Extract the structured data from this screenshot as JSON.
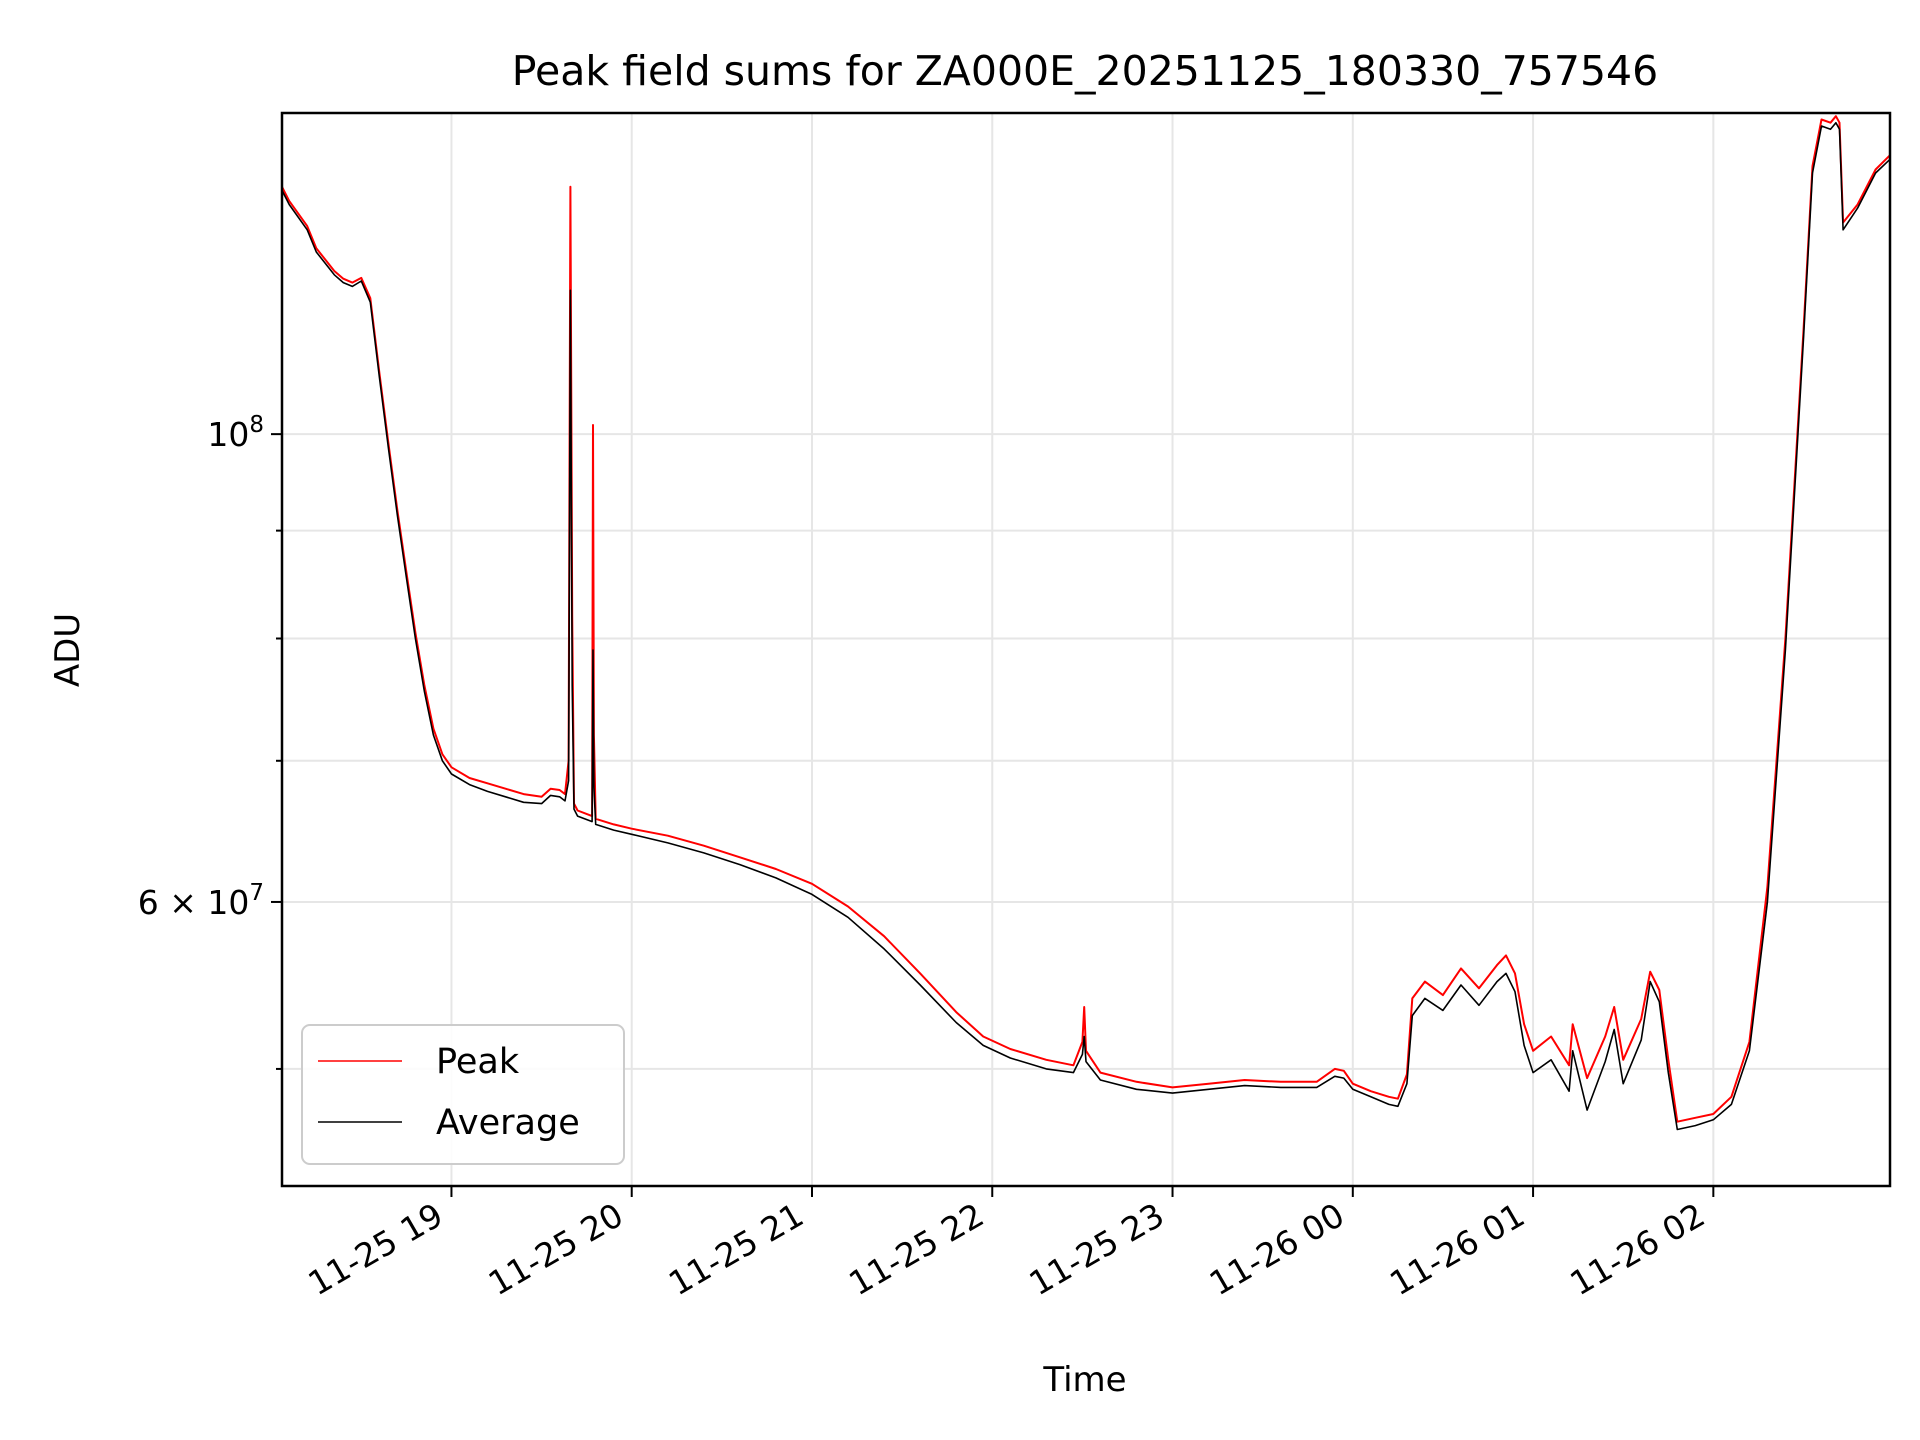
{
  "chart_data": {
    "type": "line",
    "title": "Peak field sums for ZA000E_20251125_180330_757546",
    "xlabel": "Time",
    "ylabel": "ADU",
    "yscale": "log",
    "xlim": [
      18.06,
      26.98
    ],
    "ylim": [
      44000000,
      142000000
    ],
    "grid": true,
    "legend_position": "lower-left",
    "x_ticks": [
      {
        "value": 19,
        "label": "11-25 19"
      },
      {
        "value": 20,
        "label": "11-25 20"
      },
      {
        "value": 21,
        "label": "11-25 21"
      },
      {
        "value": 22,
        "label": "11-25 22"
      },
      {
        "value": 23,
        "label": "11-25 23"
      },
      {
        "value": 24,
        "label": "11-26 00"
      },
      {
        "value": 25,
        "label": "11-26 01"
      },
      {
        "value": 26,
        "label": "11-26 02"
      }
    ],
    "y_major_ticks": [
      {
        "value": 100000000,
        "base": "10",
        "exp": "8"
      },
      {
        "value": 60000000,
        "base": "6 × 10",
        "exp": "7"
      }
    ],
    "y_minor_ticks": [
      50000000,
      70000000,
      80000000,
      90000000
    ],
    "series": [
      {
        "name": "Peak",
        "color": "#ff0000",
        "points": [
          [
            18.06,
            131000000
          ],
          [
            18.1,
            129000000
          ],
          [
            18.2,
            125500000
          ],
          [
            18.25,
            122500000
          ],
          [
            18.3,
            121000000
          ],
          [
            18.35,
            119500000
          ],
          [
            18.4,
            118500000
          ],
          [
            18.45,
            118000000
          ],
          [
            18.5,
            118600000
          ],
          [
            18.55,
            116000000
          ],
          [
            18.6,
            107000000
          ],
          [
            18.65,
            99000000
          ],
          [
            18.7,
            92000000
          ],
          [
            18.75,
            86000000
          ],
          [
            18.8,
            80500000
          ],
          [
            18.85,
            76000000
          ],
          [
            18.9,
            72500000
          ],
          [
            18.95,
            70500000
          ],
          [
            19.0,
            69500000
          ],
          [
            19.1,
            68700000
          ],
          [
            19.2,
            68300000
          ],
          [
            19.3,
            67900000
          ],
          [
            19.4,
            67500000
          ],
          [
            19.5,
            67300000
          ],
          [
            19.55,
            67900000
          ],
          [
            19.6,
            67800000
          ],
          [
            19.63,
            67500000
          ],
          [
            19.65,
            70000000
          ],
          [
            19.66,
            131000000
          ],
          [
            19.67,
            82000000
          ],
          [
            19.68,
            66800000
          ],
          [
            19.7,
            66300000
          ],
          [
            19.76,
            66000000
          ],
          [
            19.78,
            65900000
          ],
          [
            19.785,
            101000000
          ],
          [
            19.79,
            72000000
          ],
          [
            19.8,
            65700000
          ],
          [
            19.9,
            65300000
          ],
          [
            20.0,
            65000000
          ],
          [
            20.2,
            64500000
          ],
          [
            20.4,
            63800000
          ],
          [
            20.6,
            63000000
          ],
          [
            20.8,
            62200000
          ],
          [
            21.0,
            61200000
          ],
          [
            21.2,
            59700000
          ],
          [
            21.4,
            57800000
          ],
          [
            21.6,
            55500000
          ],
          [
            21.8,
            53200000
          ],
          [
            21.95,
            51800000
          ],
          [
            22.1,
            51100000
          ],
          [
            22.3,
            50500000
          ],
          [
            22.45,
            50200000
          ],
          [
            22.5,
            51500000
          ],
          [
            22.51,
            53500000
          ],
          [
            22.52,
            51000000
          ],
          [
            22.6,
            49800000
          ],
          [
            22.8,
            49300000
          ],
          [
            23.0,
            49000000
          ],
          [
            23.2,
            49200000
          ],
          [
            23.4,
            49400000
          ],
          [
            23.6,
            49300000
          ],
          [
            23.8,
            49300000
          ],
          [
            23.9,
            50000000
          ],
          [
            23.95,
            49900000
          ],
          [
            24.0,
            49200000
          ],
          [
            24.1,
            48800000
          ],
          [
            24.2,
            48500000
          ],
          [
            24.25,
            48400000
          ],
          [
            24.3,
            49700000
          ],
          [
            24.33,
            54000000
          ],
          [
            24.4,
            55000000
          ],
          [
            24.5,
            54200000
          ],
          [
            24.6,
            55800000
          ],
          [
            24.7,
            54600000
          ],
          [
            24.8,
            56000000
          ],
          [
            24.85,
            56600000
          ],
          [
            24.9,
            55500000
          ],
          [
            24.95,
            52500000
          ],
          [
            25.0,
            51000000
          ],
          [
            25.1,
            51800000
          ],
          [
            25.2,
            50200000
          ],
          [
            25.22,
            52500000
          ],
          [
            25.3,
            49500000
          ],
          [
            25.4,
            51800000
          ],
          [
            25.45,
            53500000
          ],
          [
            25.5,
            50500000
          ],
          [
            25.6,
            52800000
          ],
          [
            25.65,
            55600000
          ],
          [
            25.7,
            54500000
          ],
          [
            25.75,
            50500000
          ],
          [
            25.8,
            47200000
          ],
          [
            25.9,
            47400000
          ],
          [
            26.0,
            47600000
          ],
          [
            26.1,
            48500000
          ],
          [
            26.2,
            51500000
          ],
          [
            26.3,
            61000000
          ],
          [
            26.4,
            80000000
          ],
          [
            26.5,
            112000000
          ],
          [
            26.55,
            134000000
          ],
          [
            26.6,
            141000000
          ],
          [
            26.65,
            140500000
          ],
          [
            26.68,
            141500000
          ],
          [
            26.7,
            140500000
          ],
          [
            26.72,
            126000000
          ],
          [
            26.8,
            128500000
          ],
          [
            26.9,
            133500000
          ],
          [
            26.98,
            135600000
          ]
        ]
      },
      {
        "name": "Average",
        "color": "#000000",
        "points": [
          [
            18.06,
            130500000
          ],
          [
            18.1,
            128500000
          ],
          [
            18.2,
            125000000
          ],
          [
            18.25,
            122000000
          ],
          [
            18.3,
            120500000
          ],
          [
            18.35,
            119000000
          ],
          [
            18.4,
            118000000
          ],
          [
            18.45,
            117500000
          ],
          [
            18.5,
            118200000
          ],
          [
            18.55,
            115500000
          ],
          [
            18.6,
            106500000
          ],
          [
            18.65,
            98500000
          ],
          [
            18.7,
            91500000
          ],
          [
            18.75,
            85500000
          ],
          [
            18.8,
            80000000
          ],
          [
            18.85,
            75500000
          ],
          [
            18.9,
            72000000
          ],
          [
            18.95,
            70000000
          ],
          [
            19.0,
            69000000
          ],
          [
            19.1,
            68200000
          ],
          [
            19.2,
            67700000
          ],
          [
            19.3,
            67300000
          ],
          [
            19.4,
            66900000
          ],
          [
            19.5,
            66800000
          ],
          [
            19.55,
            67400000
          ],
          [
            19.6,
            67300000
          ],
          [
            19.63,
            67000000
          ],
          [
            19.65,
            68500000
          ],
          [
            19.66,
            117000000
          ],
          [
            19.67,
            76000000
          ],
          [
            19.68,
            66400000
          ],
          [
            19.7,
            65900000
          ],
          [
            19.76,
            65600000
          ],
          [
            19.78,
            65500000
          ],
          [
            19.785,
            79000000
          ],
          [
            19.79,
            68000000
          ],
          [
            19.8,
            65300000
          ],
          [
            19.9,
            64900000
          ],
          [
            20.0,
            64600000
          ],
          [
            20.2,
            64000000
          ],
          [
            20.4,
            63300000
          ],
          [
            20.6,
            62500000
          ],
          [
            20.8,
            61600000
          ],
          [
            21.0,
            60500000
          ],
          [
            21.2,
            59000000
          ],
          [
            21.4,
            57000000
          ],
          [
            21.6,
            54800000
          ],
          [
            21.8,
            52600000
          ],
          [
            21.95,
            51300000
          ],
          [
            22.1,
            50600000
          ],
          [
            22.3,
            50000000
          ],
          [
            22.45,
            49800000
          ],
          [
            22.5,
            50800000
          ],
          [
            22.51,
            51800000
          ],
          [
            22.52,
            50400000
          ],
          [
            22.6,
            49400000
          ],
          [
            22.8,
            48900000
          ],
          [
            23.0,
            48700000
          ],
          [
            23.2,
            48900000
          ],
          [
            23.4,
            49100000
          ],
          [
            23.6,
            49000000
          ],
          [
            23.8,
            49000000
          ],
          [
            23.9,
            49600000
          ],
          [
            23.95,
            49500000
          ],
          [
            24.0,
            48900000
          ],
          [
            24.1,
            48500000
          ],
          [
            24.2,
            48100000
          ],
          [
            24.25,
            48000000
          ],
          [
            24.3,
            49200000
          ],
          [
            24.33,
            53000000
          ],
          [
            24.4,
            54000000
          ],
          [
            24.5,
            53300000
          ],
          [
            24.6,
            54800000
          ],
          [
            24.7,
            53600000
          ],
          [
            24.8,
            55000000
          ],
          [
            24.85,
            55500000
          ],
          [
            24.9,
            54400000
          ],
          [
            24.95,
            51300000
          ],
          [
            25.0,
            49800000
          ],
          [
            25.1,
            50500000
          ],
          [
            25.2,
            48800000
          ],
          [
            25.22,
            51000000
          ],
          [
            25.3,
            47800000
          ],
          [
            25.4,
            50400000
          ],
          [
            25.45,
            52200000
          ],
          [
            25.5,
            49200000
          ],
          [
            25.6,
            51600000
          ],
          [
            25.65,
            55000000
          ],
          [
            25.7,
            53800000
          ],
          [
            25.75,
            49800000
          ],
          [
            25.8,
            46800000
          ],
          [
            25.9,
            47000000
          ],
          [
            26.0,
            47300000
          ],
          [
            26.1,
            48100000
          ],
          [
            26.2,
            51000000
          ],
          [
            26.3,
            60000000
          ],
          [
            26.4,
            79000000
          ],
          [
            26.5,
            111000000
          ],
          [
            26.55,
            133000000
          ],
          [
            26.6,
            140000000
          ],
          [
            26.65,
            139500000
          ],
          [
            26.68,
            140500000
          ],
          [
            26.7,
            139500000
          ],
          [
            26.72,
            125000000
          ],
          [
            26.8,
            128000000
          ],
          [
            26.9,
            133000000
          ],
          [
            26.98,
            135000000
          ]
        ]
      }
    ]
  }
}
